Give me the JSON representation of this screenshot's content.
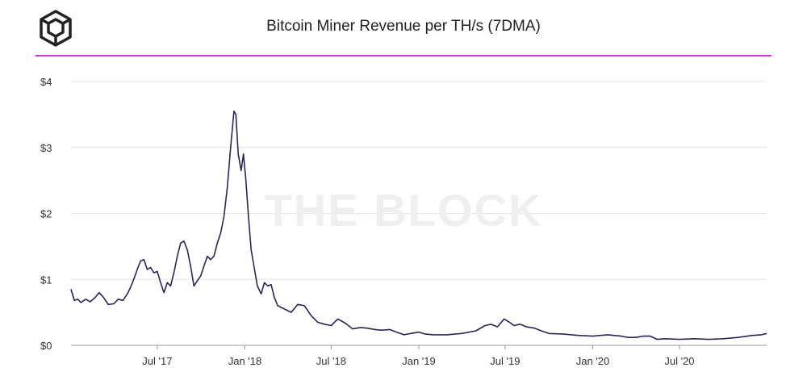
{
  "header": {
    "logo_icon": "the-block-cube-icon",
    "title": "Bitcoin Miner Revenue per TH/s (7DMA)",
    "accent_color": "#d233d8"
  },
  "watermark": "THE BLOCK",
  "chart_data": {
    "type": "line",
    "title": "Bitcoin Miner Revenue per TH/s (7DMA)",
    "xlabel": "",
    "ylabel": "",
    "ylim": [
      0,
      4
    ],
    "yticks": [
      0,
      1,
      2,
      3,
      4
    ],
    "ytick_labels": [
      "$0",
      "$1",
      "$2",
      "$3",
      "$4"
    ],
    "xlim": [
      "2017-01-01",
      "2020-12-31"
    ],
    "xticks": [
      "2017-07-01",
      "2018-01-01",
      "2018-07-01",
      "2019-01-01",
      "2019-07-01",
      "2020-01-01",
      "2020-07-01"
    ],
    "xtick_labels": [
      "Jul '17",
      "Jan '18",
      "Jul '18",
      "Jan '19",
      "Jul '19",
      "Jan '20",
      "Jul '20"
    ],
    "grid": "horizontal",
    "line_color": "#2b2557",
    "series": [
      {
        "name": "",
        "points": [
          [
            "2017-01-01",
            0.85
          ],
          [
            "2017-01-08",
            0.68
          ],
          [
            "2017-01-15",
            0.7
          ],
          [
            "2017-01-22",
            0.65
          ],
          [
            "2017-02-01",
            0.7
          ],
          [
            "2017-02-10",
            0.66
          ],
          [
            "2017-02-20",
            0.72
          ],
          [
            "2017-03-01",
            0.8
          ],
          [
            "2017-03-10",
            0.73
          ],
          [
            "2017-03-20",
            0.62
          ],
          [
            "2017-04-01",
            0.63
          ],
          [
            "2017-04-10",
            0.7
          ],
          [
            "2017-04-20",
            0.68
          ],
          [
            "2017-05-01",
            0.8
          ],
          [
            "2017-05-10",
            0.95
          ],
          [
            "2017-05-20",
            1.15
          ],
          [
            "2017-05-27",
            1.28
          ],
          [
            "2017-06-03",
            1.3
          ],
          [
            "2017-06-10",
            1.15
          ],
          [
            "2017-06-17",
            1.18
          ],
          [
            "2017-06-24",
            1.1
          ],
          [
            "2017-07-01",
            1.12
          ],
          [
            "2017-07-08",
            0.95
          ],
          [
            "2017-07-15",
            0.8
          ],
          [
            "2017-07-22",
            0.95
          ],
          [
            "2017-07-29",
            0.9
          ],
          [
            "2017-08-05",
            1.1
          ],
          [
            "2017-08-12",
            1.35
          ],
          [
            "2017-08-19",
            1.55
          ],
          [
            "2017-08-26",
            1.58
          ],
          [
            "2017-09-02",
            1.45
          ],
          [
            "2017-09-09",
            1.2
          ],
          [
            "2017-09-16",
            0.9
          ],
          [
            "2017-09-23",
            0.98
          ],
          [
            "2017-09-30",
            1.05
          ],
          [
            "2017-10-07",
            1.2
          ],
          [
            "2017-10-14",
            1.35
          ],
          [
            "2017-10-21",
            1.3
          ],
          [
            "2017-10-28",
            1.35
          ],
          [
            "2017-11-04",
            1.55
          ],
          [
            "2017-11-11",
            1.7
          ],
          [
            "2017-11-18",
            1.95
          ],
          [
            "2017-11-25",
            2.4
          ],
          [
            "2017-12-02",
            3.0
          ],
          [
            "2017-12-09",
            3.55
          ],
          [
            "2017-12-13",
            3.5
          ],
          [
            "2017-12-18",
            2.9
          ],
          [
            "2017-12-24",
            2.65
          ],
          [
            "2017-12-29",
            2.9
          ],
          [
            "2018-01-03",
            2.5
          ],
          [
            "2018-01-08",
            2.0
          ],
          [
            "2018-01-14",
            1.45
          ],
          [
            "2018-01-20",
            1.2
          ],
          [
            "2018-01-27",
            0.9
          ],
          [
            "2018-02-04",
            0.78
          ],
          [
            "2018-02-11",
            0.95
          ],
          [
            "2018-02-18",
            0.9
          ],
          [
            "2018-02-25",
            0.92
          ],
          [
            "2018-03-04",
            0.72
          ],
          [
            "2018-03-11",
            0.6
          ],
          [
            "2018-03-25",
            0.55
          ],
          [
            "2018-04-08",
            0.5
          ],
          [
            "2018-04-22",
            0.62
          ],
          [
            "2018-05-06",
            0.6
          ],
          [
            "2018-05-20",
            0.45
          ],
          [
            "2018-06-03",
            0.35
          ],
          [
            "2018-06-17",
            0.32
          ],
          [
            "2018-07-01",
            0.3
          ],
          [
            "2018-07-15",
            0.4
          ],
          [
            "2018-08-01",
            0.33
          ],
          [
            "2018-08-15",
            0.25
          ],
          [
            "2018-09-01",
            0.27
          ],
          [
            "2018-09-15",
            0.26
          ],
          [
            "2018-10-01",
            0.24
          ],
          [
            "2018-10-15",
            0.23
          ],
          [
            "2018-11-01",
            0.24
          ],
          [
            "2018-11-15",
            0.2
          ],
          [
            "2018-12-01",
            0.16
          ],
          [
            "2018-12-15",
            0.18
          ],
          [
            "2019-01-01",
            0.2
          ],
          [
            "2019-01-15",
            0.17
          ],
          [
            "2019-02-01",
            0.16
          ],
          [
            "2019-03-01",
            0.16
          ],
          [
            "2019-04-01",
            0.18
          ],
          [
            "2019-05-01",
            0.22
          ],
          [
            "2019-05-20",
            0.3
          ],
          [
            "2019-06-01",
            0.32
          ],
          [
            "2019-06-15",
            0.28
          ],
          [
            "2019-06-29",
            0.4
          ],
          [
            "2019-07-10",
            0.35
          ],
          [
            "2019-07-20",
            0.3
          ],
          [
            "2019-08-01",
            0.32
          ],
          [
            "2019-08-15",
            0.28
          ],
          [
            "2019-09-01",
            0.26
          ],
          [
            "2019-09-15",
            0.22
          ],
          [
            "2019-10-01",
            0.18
          ],
          [
            "2019-11-01",
            0.17
          ],
          [
            "2019-12-01",
            0.15
          ],
          [
            "2020-01-01",
            0.14
          ],
          [
            "2020-02-01",
            0.16
          ],
          [
            "2020-03-01",
            0.14
          ],
          [
            "2020-03-15",
            0.12
          ],
          [
            "2020-04-01",
            0.12
          ],
          [
            "2020-04-15",
            0.14
          ],
          [
            "2020-05-01",
            0.14
          ],
          [
            "2020-05-15",
            0.09
          ],
          [
            "2020-06-01",
            0.1
          ],
          [
            "2020-07-01",
            0.09
          ],
          [
            "2020-08-01",
            0.1
          ],
          [
            "2020-09-01",
            0.09
          ],
          [
            "2020-10-01",
            0.1
          ],
          [
            "2020-11-01",
            0.12
          ],
          [
            "2020-12-01",
            0.15
          ],
          [
            "2020-12-20",
            0.16
          ],
          [
            "2020-12-31",
            0.18
          ]
        ]
      }
    ]
  }
}
